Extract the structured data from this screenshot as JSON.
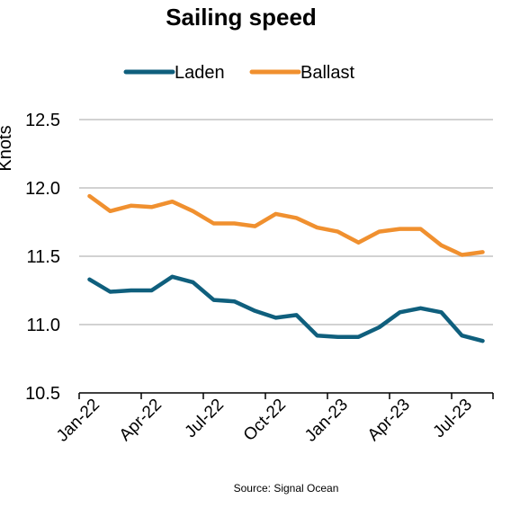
{
  "chart_data": {
    "type": "line",
    "title": "Sailing speed",
    "ylabel": "Knots",
    "xlabel": "",
    "source": "Source: Signal Ocean",
    "ylim": [
      10.5,
      12.5
    ],
    "yticks": [
      "10.5",
      "11.0",
      "11.5",
      "12.0",
      "12.5"
    ],
    "grid": true,
    "legend": "top-center",
    "x": [
      "Jan-22",
      "Feb-22",
      "Mar-22",
      "Apr-22",
      "May-22",
      "Jun-22",
      "Jul-22",
      "Aug-22",
      "Sep-22",
      "Oct-22",
      "Nov-22",
      "Dec-22",
      "Jan-23",
      "Feb-23",
      "Mar-23",
      "Apr-23",
      "May-23",
      "Jun-23",
      "Jul-23",
      "Aug-23"
    ],
    "xtick_labels": [
      "Jan-22",
      "Apr-22",
      "Jul-22",
      "Oct-22",
      "Jan-23",
      "Apr-23",
      "Jul-23"
    ],
    "series": [
      {
        "name": "Laden",
        "color": "#0f5f7d",
        "values": [
          11.33,
          11.24,
          11.25,
          11.25,
          11.35,
          11.31,
          11.18,
          11.17,
          11.1,
          11.05,
          11.07,
          10.92,
          10.91,
          10.91,
          10.98,
          11.09,
          11.12,
          11.09,
          10.92,
          10.88
        ]
      },
      {
        "name": "Ballast",
        "color": "#f0902f",
        "values": [
          11.94,
          11.83,
          11.87,
          11.86,
          11.9,
          11.83,
          11.74,
          11.74,
          11.72,
          11.81,
          11.78,
          11.71,
          11.68,
          11.6,
          11.68,
          11.7,
          11.7,
          11.58,
          11.51,
          11.53
        ]
      }
    ]
  }
}
